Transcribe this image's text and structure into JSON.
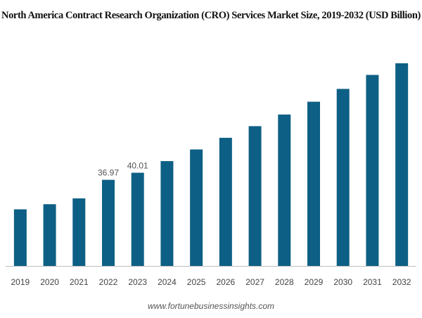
{
  "chart_data": {
    "type": "bar",
    "title": "North America Contract Research Organization (CRO) Services Market Size, 2019-2032 (USD Billion)",
    "xlabel": "",
    "ylabel": "",
    "categories": [
      "2019",
      "2020",
      "2021",
      "2022",
      "2023",
      "2024",
      "2025",
      "2026",
      "2027",
      "2028",
      "2029",
      "2030",
      "2031",
      "2032"
    ],
    "values": [
      24.3,
      26.5,
      29.0,
      36.97,
      40.01,
      45.0,
      50.0,
      55.0,
      60.0,
      65.0,
      70.5,
      76.0,
      82.0,
      87.0
    ],
    "data_labels": [
      {
        "index": 3,
        "text": "36.97"
      },
      {
        "index": 4,
        "text": "40.01"
      }
    ],
    "ylim": [
      0,
      90
    ],
    "bar_color": "#0e5f85",
    "axis_color": "#bfbfbf",
    "grid": false,
    "legend": "none"
  },
  "footer": {
    "source": "www.fortunebusinessinsights.com"
  }
}
